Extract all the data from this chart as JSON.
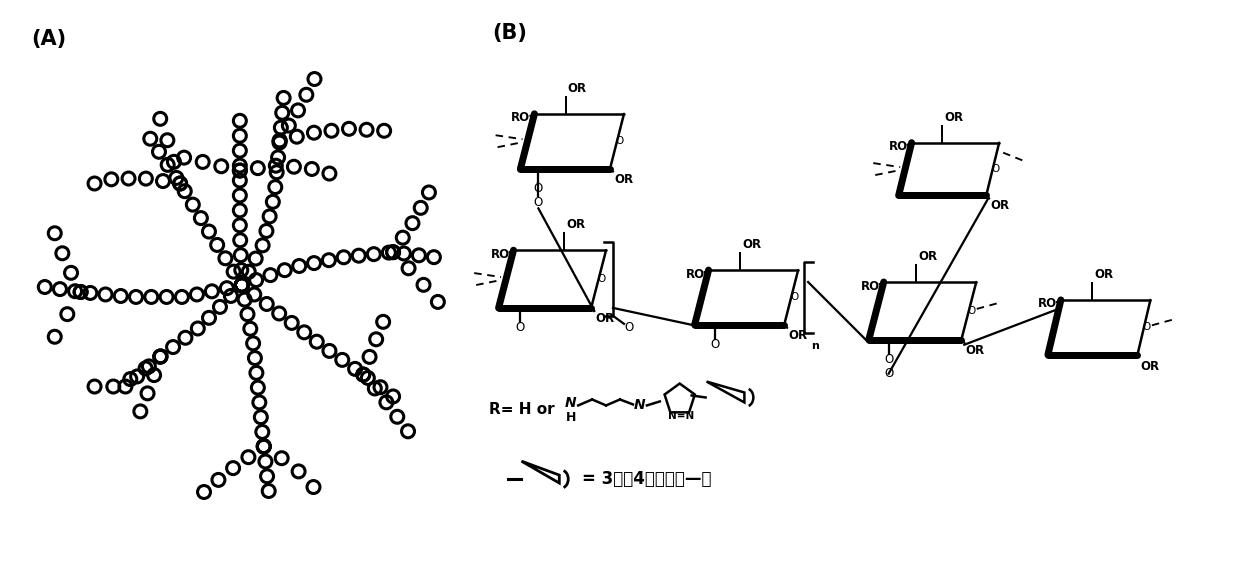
{
  "label_A": "(A)",
  "label_B": "(B)",
  "label_R": "R= H or",
  "label_eq": "3代或4代聚酰胺—胺",
  "background": "#ffffff",
  "ink_color": "#000000",
  "figsize": [
    12.4,
    5.75
  ],
  "dpi": 100
}
